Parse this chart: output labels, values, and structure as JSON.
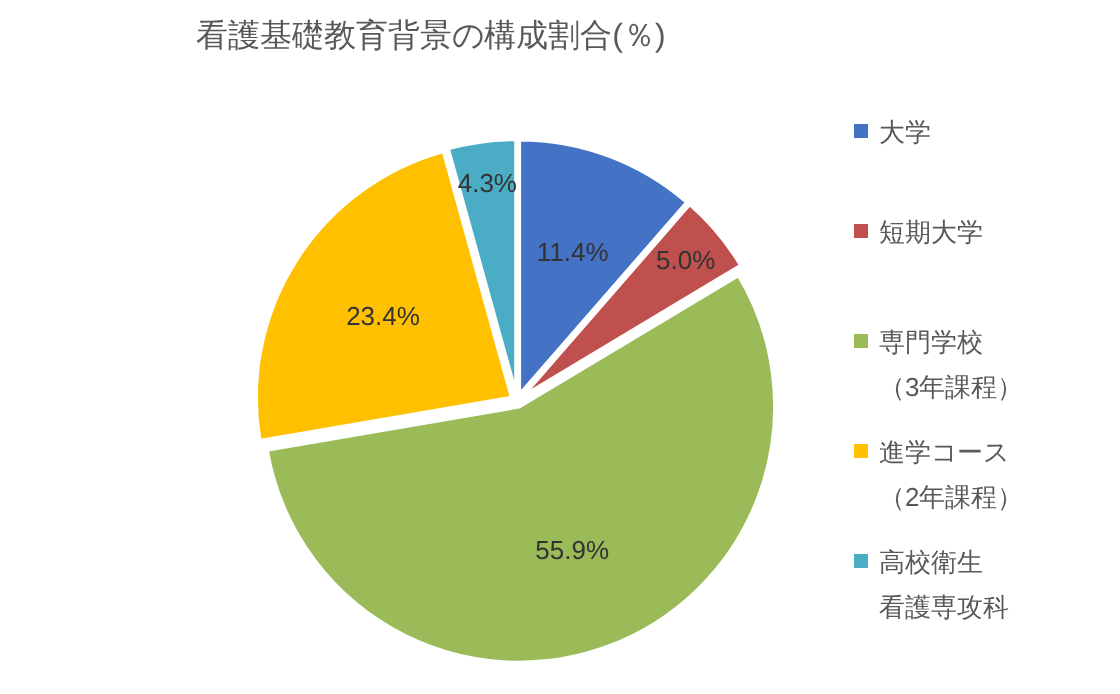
{
  "chart_data": {
    "type": "pie",
    "title": "看護基礎教育背景の構成割合(％)",
    "categories": [
      "大学",
      "短期大学",
      "専門学校（3年課程）",
      "進学コース（2年課程）",
      "高校衛生看護専攻科"
    ],
    "values": [
      11.4,
      5.0,
      55.9,
      23.4,
      4.3
    ],
    "colors": [
      "#4472c4",
      "#c0504d",
      "#9bbb59",
      "#ffc000",
      "#4bacc6"
    ],
    "value_labels": [
      "11.4%",
      "5.0%",
      "55.9%",
      "23.4%",
      "4.3%"
    ],
    "legend": "right"
  }
}
